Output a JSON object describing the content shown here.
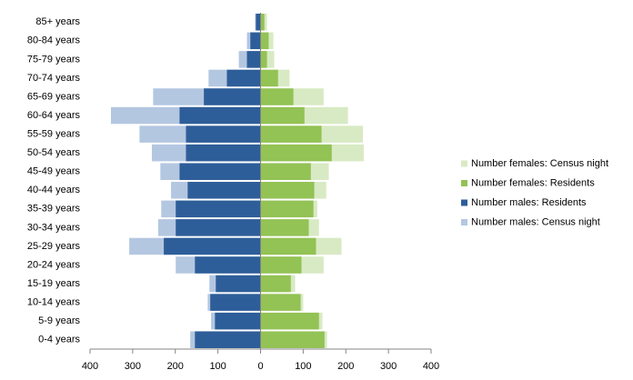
{
  "chart_data": {
    "type": "bar",
    "orientation": "horizontal",
    "overlap": true,
    "categories": [
      "0-4 years",
      "5-9 years",
      "10-14 years",
      "15-19 years",
      "20-24 years",
      "25-29 years",
      "30-34 years",
      "35-39 years",
      "40-44 years",
      "45-49 years",
      "50-54 years",
      "55-59 years",
      "60-64 years",
      "65-69 years",
      "70-74 years",
      "75-79 years",
      "80-84 years",
      "85+ years"
    ],
    "series": [
      {
        "name": "Number females: Census night",
        "color": "#d8eac3",
        "values": [
          156,
          145,
          100,
          81,
          148,
          190,
          137,
          133,
          154,
          160,
          242,
          240,
          205,
          148,
          68,
          32,
          30,
          15
        ]
      },
      {
        "name": "Number females: Residents",
        "color": "#93c255",
        "values": [
          150,
          137,
          94,
          71,
          96,
          130,
          113,
          124,
          126,
          118,
          167,
          143,
          103,
          77,
          41,
          15,
          19,
          9
        ]
      },
      {
        "name": "Number males: Residents",
        "color": "#2e5e99",
        "values": [
          -154,
          -107,
          -118,
          -105,
          -154,
          -227,
          -199,
          -199,
          -171,
          -190,
          -175,
          -175,
          -190,
          -133,
          -79,
          -32,
          -24,
          -11
        ]
      },
      {
        "name": "Number males: Census night",
        "color": "#b4c7e1",
        "values": [
          -165,
          -116,
          -124,
          -120,
          -199,
          -308,
          -240,
          -233,
          -210,
          -235,
          -255,
          -284,
          -351,
          -252,
          -122,
          -51,
          -32,
          -13
        ]
      }
    ],
    "xlim": [
      -400,
      400
    ],
    "xticks": [
      {
        "value": -400,
        "label": "400"
      },
      {
        "value": -300,
        "label": "300"
      },
      {
        "value": -200,
        "label": "200"
      },
      {
        "value": -100,
        "label": "100"
      },
      0,
      100,
      200,
      300,
      400
    ],
    "legend": "right"
  }
}
